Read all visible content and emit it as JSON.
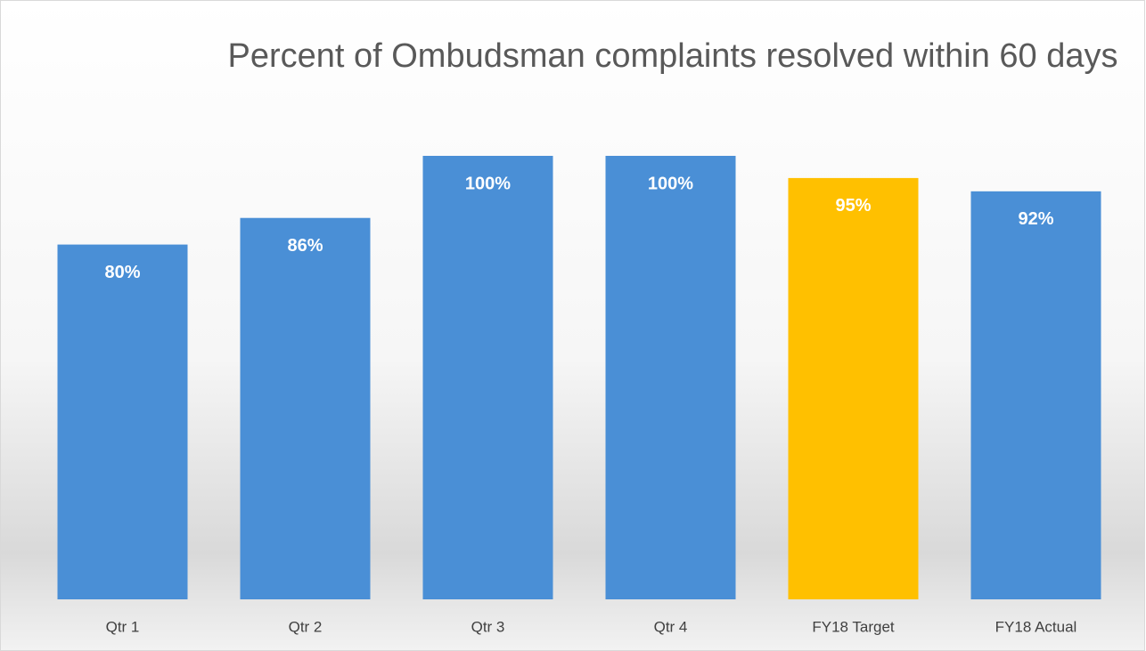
{
  "chart_data": {
    "type": "bar",
    "title": "Percent of Ombudsman complaints resolved within 60 days",
    "categories": [
      "Qtr 1",
      "Qtr 2",
      "Qtr 3",
      "Qtr 4",
      "FY18 Target",
      "FY18 Actual"
    ],
    "values": [
      80,
      86,
      100,
      100,
      95,
      92
    ],
    "value_labels": [
      "80%",
      "86%",
      "100%",
      "100%",
      "95%",
      "92%"
    ],
    "colors": [
      "#4a8fd6",
      "#4a8fd6",
      "#4a8fd6",
      "#4a8fd6",
      "#ffc000",
      "#4a8fd6"
    ],
    "ylim": [
      0,
      100
    ]
  }
}
